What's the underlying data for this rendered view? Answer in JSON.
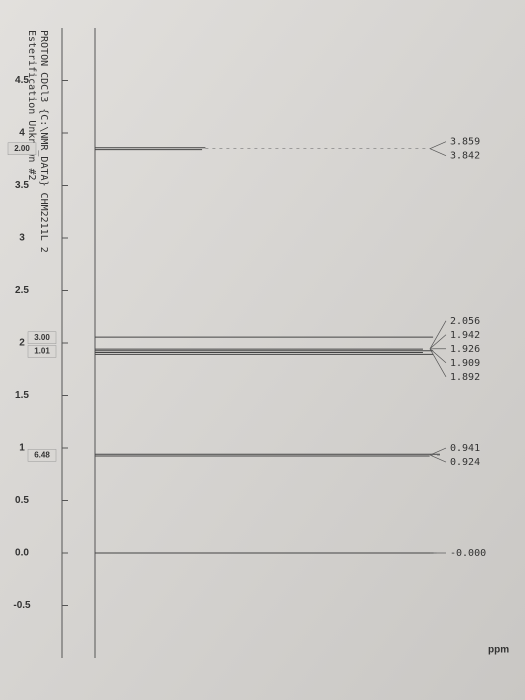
{
  "header": {
    "title": "Esterification Unknown #2",
    "subtitle": "PROTON CDCl3 {C:\\NMR_DATA} CHM2211L 2"
  },
  "axis": {
    "label": "ppm",
    "lim": [
      5.0,
      -1.0
    ],
    "ticks": [
      4.5,
      4.0,
      3.5,
      3.0,
      2.5,
      2.0,
      1.5,
      1.0,
      0.5,
      {
        "value": 0,
        "label": "0.0"
      },
      -0.5
    ]
  },
  "peak_groups": [
    {
      "labels": [
        3.859,
        3.842
      ],
      "intensity": 0.32
    },
    {
      "labels": [
        2.056,
        1.942,
        1.926,
        1.909,
        1.892
      ],
      "intensity": 0.98
    },
    {
      "labels": [
        0.941,
        0.924
      ],
      "intensity": 1.0
    },
    {
      "labels": [
        {
          "value": 0,
          "label": "-0.000"
        }
      ],
      "intensity": 0.99
    }
  ],
  "integrals": [
    {
      "label": "2.00",
      "ppm": 3.85
    },
    {
      "label": "3.00",
      "ppm": 2.05
    },
    {
      "label": "1.01",
      "ppm": 1.92
    },
    {
      "label": "6.48",
      "ppm": 0.93
    }
  ]
}
